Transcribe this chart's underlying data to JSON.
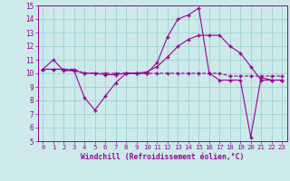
{
  "xlabel": "Windchill (Refroidissement éolien,°C)",
  "x_hours": [
    0,
    1,
    2,
    3,
    4,
    5,
    6,
    7,
    8,
    9,
    10,
    11,
    12,
    13,
    14,
    15,
    16,
    17,
    18,
    19,
    20,
    21,
    22,
    23
  ],
  "line1": [
    10.3,
    11.0,
    10.2,
    10.2,
    8.2,
    7.3,
    8.3,
    9.3,
    10.0,
    10.0,
    10.0,
    10.8,
    12.7,
    14.0,
    14.3,
    14.8,
    10.0,
    9.5,
    9.5,
    9.5,
    5.3,
    9.7,
    9.5,
    9.5
  ],
  "line2": [
    10.3,
    10.3,
    10.3,
    10.3,
    10.0,
    10.0,
    10.0,
    10.0,
    10.0,
    10.0,
    10.0,
    10.0,
    10.0,
    10.0,
    10.0,
    10.0,
    10.0,
    10.0,
    9.8,
    9.8,
    9.8,
    9.8,
    9.8,
    9.8
  ],
  "line3": [
    10.3,
    10.3,
    10.3,
    10.2,
    10.0,
    10.0,
    9.9,
    9.9,
    10.0,
    10.0,
    10.1,
    10.5,
    11.2,
    12.0,
    12.5,
    12.8,
    12.8,
    12.8,
    12.0,
    11.5,
    10.5,
    9.5,
    9.5,
    9.5
  ],
  "line_color": "#990099",
  "bg_color": "#cceaea",
  "grid_color": "#99cccc",
  "ylim": [
    5,
    15
  ],
  "yticks": [
    5,
    6,
    7,
    8,
    9,
    10,
    11,
    12,
    13,
    14,
    15
  ],
  "xlim_min": -0.5,
  "xlim_max": 23.5
}
